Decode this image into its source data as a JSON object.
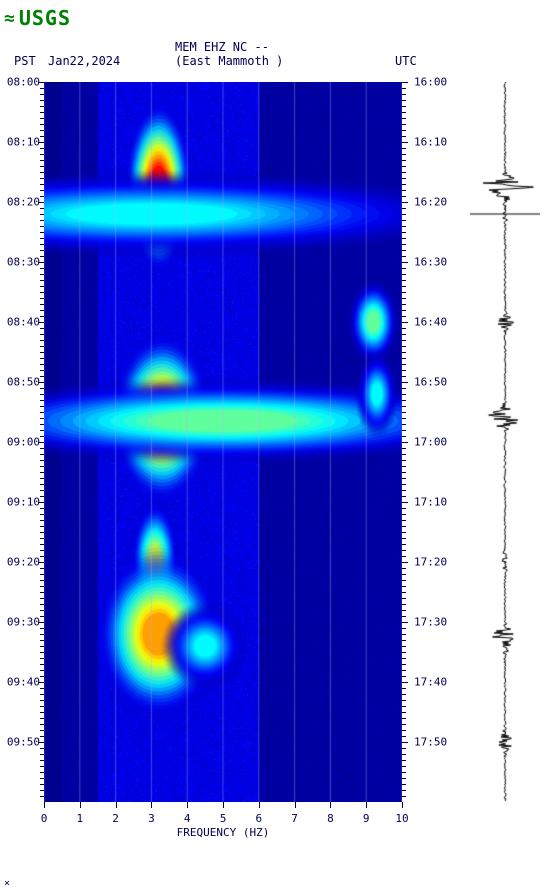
{
  "logo": {
    "text": "USGS",
    "wave_color": "#008000"
  },
  "header": {
    "station": "MEM EHZ NC --",
    "location": "(East Mammoth )",
    "pst_label": "PST",
    "date": "Jan22,2024",
    "utc_label": "UTC"
  },
  "spectrogram": {
    "type": "spectrogram",
    "time_start_pst": "08:00",
    "time_end_pst": "10:00",
    "time_start_utc": "16:00",
    "time_end_utc": "18:00",
    "freq_min": 0,
    "freq_max": 10,
    "xlabel": "FREQUENCY (HZ)",
    "xticks": [
      0,
      1,
      2,
      3,
      4,
      5,
      6,
      7,
      8,
      9,
      10
    ],
    "yticks_left": [
      "08:00",
      "08:10",
      "08:20",
      "08:30",
      "08:40",
      "08:50",
      "09:00",
      "09:10",
      "09:20",
      "09:30",
      "09:40",
      "09:50"
    ],
    "yticks_right": [
      "16:00",
      "16:10",
      "16:20",
      "16:30",
      "16:40",
      "16:50",
      "17:00",
      "17:10",
      "17:20",
      "17:30",
      "17:40",
      "17:50"
    ],
    "ytick_step_minutes": 10,
    "background_color": "#0000a0",
    "gridline_color": "#b0b0ff",
    "colormap": {
      "low": "#00008b",
      "mid_low": "#0000ff",
      "mid": "#00ffff",
      "mid_high": "#ffff00",
      "high": "#ff0000"
    },
    "events": [
      {
        "time_min": 17.5,
        "freq": 3.2,
        "intensity": 1.0,
        "width": 0.8,
        "duration": 2
      },
      {
        "time_min": 22,
        "freq": 3.0,
        "intensity": 0.5,
        "width": 8,
        "duration": 1
      },
      {
        "time_min": 56,
        "freq": 3.3,
        "intensity": 0.95,
        "width": 1.2,
        "duration": 2
      },
      {
        "time_min": 56.5,
        "freq": 5,
        "intensity": 0.6,
        "width": 7,
        "duration": 1
      },
      {
        "time_min": 80,
        "freq": 3.1,
        "intensity": 0.7,
        "width": 0.6,
        "duration": 1.5
      },
      {
        "time_min": 92,
        "freq": 3.2,
        "intensity": 0.85,
        "width": 1.5,
        "duration": 2
      },
      {
        "time_min": 94,
        "freq": 4.5,
        "intensity": 0.5,
        "width": 1,
        "duration": 1
      },
      {
        "time_min": 40,
        "freq": 9.2,
        "intensity": 0.6,
        "width": 0.6,
        "duration": 1
      },
      {
        "time_min": 52,
        "freq": 9.3,
        "intensity": 0.5,
        "width": 0.5,
        "duration": 1
      }
    ],
    "noise_band": {
      "freq_min": 2,
      "freq_max": 6,
      "intensity": 0.25
    }
  },
  "seismogram": {
    "type": "waveform",
    "color": "#000000",
    "baseline_color": "#000000",
    "events": [
      {
        "time_min": 17.5,
        "amplitude": 1.0
      },
      {
        "time_min": 22,
        "amplitude": 0.1
      },
      {
        "time_min": 40,
        "amplitude": 0.3
      },
      {
        "time_min": 56,
        "amplitude": 0.7
      },
      {
        "time_min": 80,
        "amplitude": 0.15
      },
      {
        "time_min": 92,
        "amplitude": 0.45
      },
      {
        "time_min": 94,
        "amplitude": 0.2
      },
      {
        "time_min": 110,
        "amplitude": 0.25
      }
    ],
    "event_line_time_min": 22
  },
  "colors": {
    "text": "#000051",
    "logo": "#008000"
  }
}
